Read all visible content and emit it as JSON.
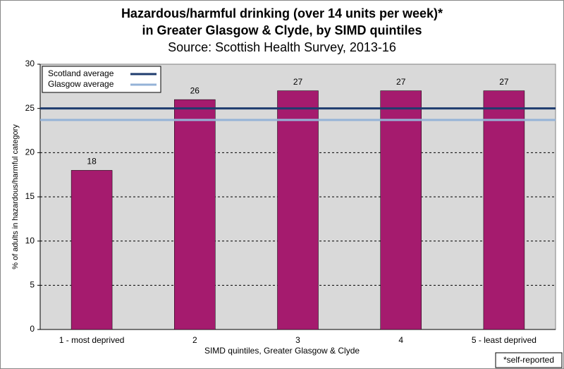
{
  "chart_data": {
    "type": "bar",
    "title": [
      "Hazardous/harmful drinking (over 14 units per week)*",
      "in Greater Glasgow & Clyde, by SIMD quintiles"
    ],
    "subtitle": "Source: Scottish Health Survey, 2013-16",
    "x_label": "SIMD quintiles, Greater Glasgow & Clyde",
    "y_label": "% of adults in hazardous/harmful category",
    "categories": [
      "1 - most deprived",
      "2",
      "3",
      "4",
      "5 - least deprived"
    ],
    "values": [
      18,
      26,
      27,
      27,
      27
    ],
    "color": "#a51b6e",
    "reference_lines": [
      {
        "name": "Scotland average",
        "color": "#1f3c6e",
        "value": 25
      },
      {
        "name": "Glasgow average",
        "color": "#95b3d7",
        "value": 23.7
      }
    ],
    "ylim": [
      0,
      30
    ],
    "yticks": [
      0,
      5,
      10,
      15,
      20,
      25,
      30
    ],
    "grid": true,
    "legend": "top-left",
    "footnote": "*self-reported"
  }
}
